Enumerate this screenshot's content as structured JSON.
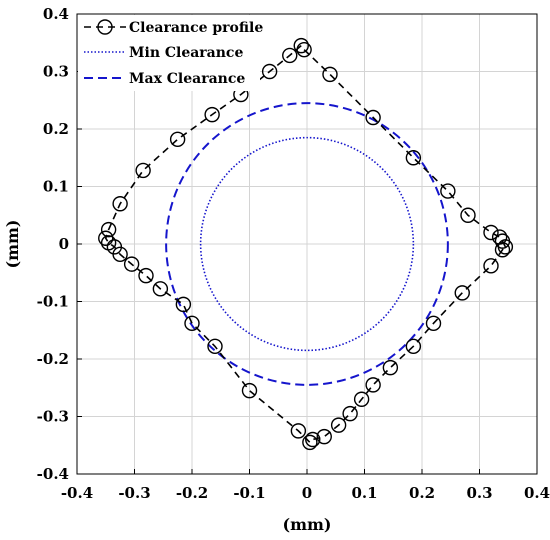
{
  "chart_data": {
    "type": "line",
    "xlabel": "(mm)",
    "ylabel": "(mm)",
    "xlim": [
      -0.4,
      0.4
    ],
    "ylim": [
      -0.4,
      0.4
    ],
    "xticks": [
      "-0.4",
      "-0.3",
      "-0.2",
      "-0.1",
      "0",
      "0.1",
      "0.2",
      "0.3",
      "0.4"
    ],
    "yticks": [
      "-0.4",
      "-0.3",
      "-0.2",
      "-0.1",
      "0",
      "0.1",
      "0.2",
      "0.3",
      "0.4"
    ],
    "grid": true,
    "legend_position": "top-left",
    "series": [
      {
        "name": "Clearance profile",
        "style": "dashed-circle-markers",
        "color": "#000000",
        "points": [
          [
            0.345,
            -0.005
          ],
          [
            0.34,
            0.005
          ],
          [
            0.335,
            0.012
          ],
          [
            0.32,
            0.02
          ],
          [
            0.28,
            0.05
          ],
          [
            0.245,
            0.092
          ],
          [
            0.185,
            0.15
          ],
          [
            0.115,
            0.22
          ],
          [
            0.04,
            0.295
          ],
          [
            -0.005,
            0.338
          ],
          [
            -0.01,
            0.345
          ],
          [
            -0.03,
            0.328
          ],
          [
            -0.065,
            0.3
          ],
          [
            -0.115,
            0.26
          ],
          [
            -0.165,
            0.225
          ],
          [
            -0.225,
            0.182
          ],
          [
            -0.285,
            0.128
          ],
          [
            -0.325,
            0.07
          ],
          [
            -0.345,
            0.025
          ],
          [
            -0.35,
            0.01
          ],
          [
            -0.345,
            0.002
          ],
          [
            -0.335,
            -0.005
          ],
          [
            -0.325,
            -0.018
          ],
          [
            -0.305,
            -0.035
          ],
          [
            -0.28,
            -0.055
          ],
          [
            -0.255,
            -0.078
          ],
          [
            -0.215,
            -0.105
          ],
          [
            -0.2,
            -0.138
          ],
          [
            -0.16,
            -0.178
          ],
          [
            -0.1,
            -0.255
          ],
          [
            -0.015,
            -0.325
          ],
          [
            0.005,
            -0.345
          ],
          [
            0.01,
            -0.34
          ],
          [
            0.03,
            -0.335
          ],
          [
            0.055,
            -0.315
          ],
          [
            0.075,
            -0.295
          ],
          [
            0.095,
            -0.27
          ],
          [
            0.115,
            -0.245
          ],
          [
            0.145,
            -0.215
          ],
          [
            0.185,
            -0.178
          ],
          [
            0.22,
            -0.138
          ],
          [
            0.27,
            -0.085
          ],
          [
            0.32,
            -0.038
          ],
          [
            0.34,
            -0.01
          ]
        ]
      },
      {
        "name": "Min Clearance",
        "style": "dotted",
        "color": "#1515cc",
        "radius": 0.185
      },
      {
        "name": "Max Clearance",
        "style": "dashed",
        "color": "#1515cc",
        "radius": 0.245
      }
    ]
  }
}
